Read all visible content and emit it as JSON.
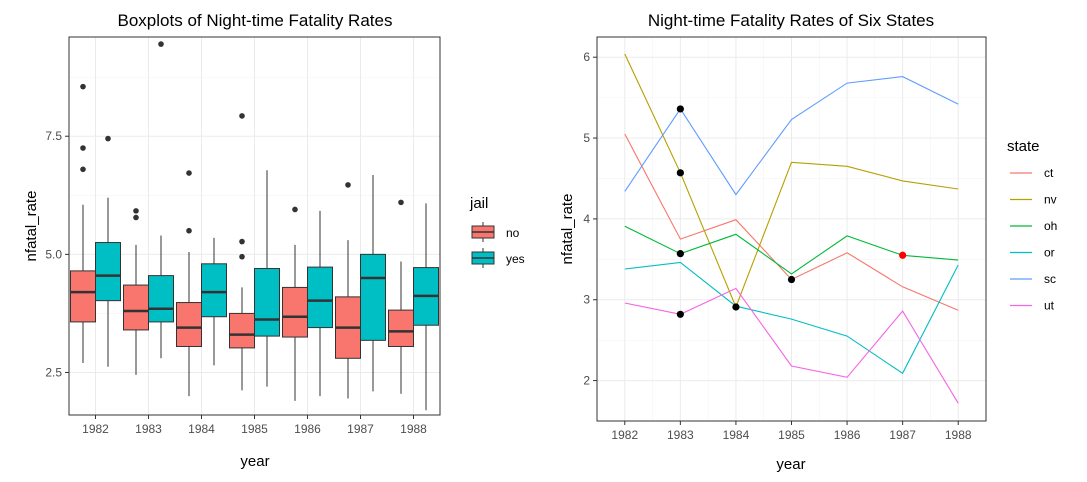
{
  "chart_data": [
    {
      "type": "boxplot",
      "title": "Boxplots of Night-time Fatality Rates",
      "xlabel": "year",
      "ylabel": "nfatal_rate",
      "categories": [
        "1982",
        "1983",
        "1984",
        "1985",
        "1986",
        "1987",
        "1988"
      ],
      "ylim": [
        1.6,
        9.6
      ],
      "yticks": [
        2.5,
        5.0,
        7.5
      ],
      "ytick_labels": [
        "2.5",
        "5.0",
        "7.5"
      ],
      "grid": true,
      "legend": {
        "title": "jail",
        "position": "right"
      },
      "series": [
        {
          "name": "no",
          "color": "#F8766D",
          "boxes": [
            {
              "min": 2.7,
              "q1": 3.57,
              "median": 4.2,
              "q3": 4.65,
              "max": 6.05,
              "outliers": [
                6.8,
                7.25,
                8.55
              ]
            },
            {
              "min": 2.45,
              "q1": 3.4,
              "median": 3.8,
              "q3": 4.35,
              "max": 5.2,
              "outliers": [
                5.78,
                5.92
              ]
            },
            {
              "min": 2.0,
              "q1": 3.05,
              "median": 3.45,
              "q3": 3.98,
              "max": 5.05,
              "outliers": [
                5.5,
                6.72
              ]
            },
            {
              "min": 2.12,
              "q1": 3.02,
              "median": 3.3,
              "q3": 3.75,
              "max": 4.3,
              "outliers": [
                4.95,
                5.27,
                7.93
              ]
            },
            {
              "min": 1.9,
              "q1": 3.25,
              "median": 3.68,
              "q3": 4.3,
              "max": 5.2,
              "outliers": [
                5.95
              ]
            },
            {
              "min": 1.95,
              "q1": 2.8,
              "median": 3.45,
              "q3": 4.1,
              "max": 5.3,
              "outliers": [
                6.47
              ]
            },
            {
              "min": 2.05,
              "q1": 3.05,
              "median": 3.37,
              "q3": 3.82,
              "max": 4.85,
              "outliers": [
                6.1
              ]
            }
          ]
        },
        {
          "name": "yes",
          "color": "#00BFC4",
          "boxes": [
            {
              "min": 2.62,
              "q1": 4.02,
              "median": 4.55,
              "q3": 5.25,
              "max": 6.2,
              "outliers": [
                7.45
              ]
            },
            {
              "min": 2.8,
              "q1": 3.57,
              "median": 3.85,
              "q3": 4.55,
              "max": 5.4,
              "outliers": [
                9.45
              ]
            },
            {
              "min": 2.65,
              "q1": 3.68,
              "median": 4.2,
              "q3": 4.8,
              "max": 5.35,
              "outliers": []
            },
            {
              "min": 2.2,
              "q1": 3.27,
              "median": 3.62,
              "q3": 4.7,
              "max": 6.78,
              "outliers": []
            },
            {
              "min": 2.0,
              "q1": 3.45,
              "median": 4.02,
              "q3": 4.73,
              "max": 5.92,
              "outliers": []
            },
            {
              "min": 2.1,
              "q1": 3.18,
              "median": 4.5,
              "q3": 5.0,
              "max": 6.68,
              "outliers": []
            },
            {
              "min": 1.7,
              "q1": 3.5,
              "median": 4.12,
              "q3": 4.72,
              "max": 6.08,
              "outliers": []
            }
          ]
        }
      ]
    },
    {
      "type": "line",
      "title": "Night-time Fatality Rates of Six States",
      "xlabel": "year",
      "ylabel": "nfatal_rate",
      "x": [
        1982,
        1983,
        1984,
        1985,
        1986,
        1987,
        1988
      ],
      "xtick_labels": [
        "1982",
        "1983",
        "1984",
        "1985",
        "1986",
        "1987",
        "1988"
      ],
      "xlim": [
        1981.5,
        1988.5
      ],
      "ylim": [
        1.5,
        6.25
      ],
      "yticks": [
        2,
        3,
        4,
        5,
        6
      ],
      "ytick_labels": [
        "2",
        "3",
        "4",
        "5",
        "6"
      ],
      "grid": true,
      "legend": {
        "title": "state",
        "position": "right"
      },
      "series": [
        {
          "name": "ct",
          "color": "#F8766D",
          "values": [
            5.05,
            3.75,
            3.99,
            3.25,
            3.58,
            3.16,
            2.87
          ]
        },
        {
          "name": "nv",
          "color": "#B79F00",
          "values": [
            6.04,
            4.57,
            2.91,
            4.7,
            4.65,
            4.47,
            4.37
          ]
        },
        {
          "name": "oh",
          "color": "#00BA38",
          "values": [
            3.91,
            3.57,
            3.81,
            3.32,
            3.79,
            3.55,
            3.49
          ]
        },
        {
          "name": "or",
          "color": "#00BFC4",
          "values": [
            3.38,
            3.46,
            2.92,
            2.76,
            2.55,
            2.09,
            3.43
          ]
        },
        {
          "name": "sc",
          "color": "#619CFF",
          "values": [
            4.34,
            5.36,
            4.3,
            5.23,
            5.68,
            5.76,
            5.42
          ]
        },
        {
          "name": "ut",
          "color": "#F564E3",
          "values": [
            2.96,
            2.82,
            3.14,
            2.18,
            2.04,
            2.86,
            1.72
          ]
        }
      ],
      "highlight_points": [
        {
          "x": 1983,
          "y": 5.36,
          "color": "#000000"
        },
        {
          "x": 1983,
          "y": 4.57,
          "color": "#000000"
        },
        {
          "x": 1983,
          "y": 3.57,
          "color": "#000000"
        },
        {
          "x": 1983,
          "y": 2.82,
          "color": "#000000"
        },
        {
          "x": 1984,
          "y": 2.91,
          "color": "#000000"
        },
        {
          "x": 1985,
          "y": 3.25,
          "color": "#000000"
        },
        {
          "x": 1987,
          "y": 3.55,
          "color": "#FF0000"
        }
      ]
    }
  ]
}
